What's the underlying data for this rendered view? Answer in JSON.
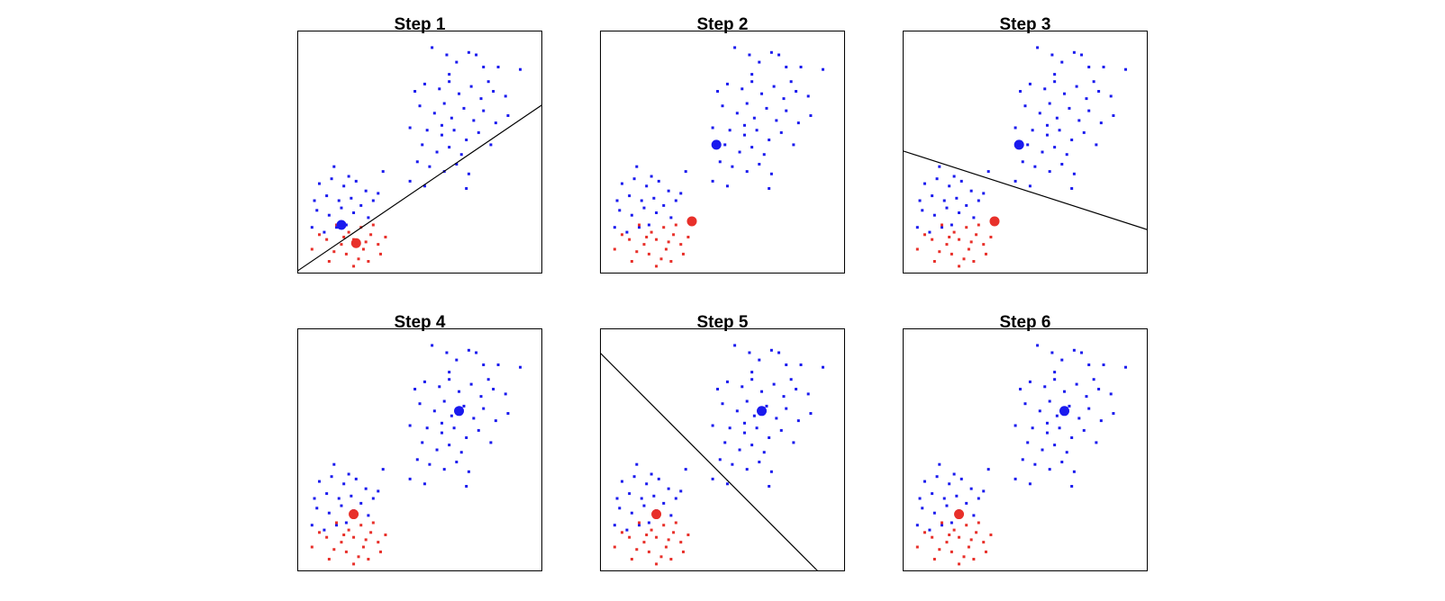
{
  "colors": {
    "cluster_a": "#1a1aee",
    "cluster_b": "#e8302a",
    "line": "#000000",
    "frame": "#000000"
  },
  "chart_data": [
    {
      "type": "scatter",
      "title": "Step 1",
      "xlim": [
        0,
        10
      ],
      "ylim": [
        0,
        10
      ],
      "grid": false,
      "centroids": {
        "cluster_a": [
          1.8,
          2.0
        ],
        "cluster_b": [
          2.4,
          1.25
        ]
      },
      "split_line": [
        [
          0,
          0.1
        ],
        [
          10,
          6.95
        ]
      ],
      "split_points": [
        [
          5.8,
          5.2
        ],
        [
          7.0,
          5.2
        ],
        [
          7.2,
          6.0
        ],
        [
          8.0,
          5.6
        ],
        [
          9.35,
          5.6
        ],
        [
          9.35,
          5.4
        ],
        [
          7.3,
          4.6
        ],
        [
          6.1,
          4.6
        ],
        [
          5.0,
          4.0
        ],
        [
          4.3,
          3.0
        ],
        [
          4.0,
          2.4
        ],
        [
          3.9,
          2.0
        ]
      ]
    },
    {
      "type": "scatter",
      "title": "Step 2",
      "xlim": [
        0,
        10
      ],
      "ylim": [
        0,
        10
      ],
      "grid": false,
      "centroids": {
        "cluster_a": [
          4.75,
          5.3
        ],
        "cluster_b": [
          3.75,
          2.15
        ]
      },
      "split_line": null,
      "split_points": [
        [
          5.8,
          5.2
        ],
        [
          7.0,
          5.2
        ],
        [
          7.2,
          6.0
        ],
        [
          8.0,
          5.6
        ],
        [
          9.35,
          5.6
        ],
        [
          9.35,
          5.4
        ],
        [
          7.3,
          4.6
        ],
        [
          6.1,
          4.6
        ],
        [
          5.0,
          4.0
        ],
        [
          4.3,
          3.0
        ],
        [
          4.0,
          2.4
        ],
        [
          3.9,
          2.0
        ]
      ]
    },
    {
      "type": "scatter",
      "title": "Step 3",
      "xlim": [
        0,
        10
      ],
      "ylim": [
        0,
        10
      ],
      "grid": false,
      "centroids": {
        "cluster_a": [
          4.75,
          5.3
        ],
        "cluster_b": [
          3.75,
          2.15
        ]
      },
      "split_line": [
        [
          0,
          5.05
        ],
        [
          10,
          1.8
        ]
      ],
      "split_points": [
        [
          3.5,
          3.7
        ],
        [
          3.6,
          4.2
        ]
      ]
    },
    {
      "type": "scatter",
      "title": "Step 4",
      "xlim": [
        0,
        10
      ],
      "ylim": [
        0,
        10
      ],
      "grid": false,
      "centroids": {
        "cluster_a": [
          6.6,
          6.6
        ],
        "cluster_b": [
          2.3,
          2.35
        ]
      },
      "split_line": null,
      "split_points": []
    },
    {
      "type": "scatter",
      "title": "Step 5",
      "xlim": [
        0,
        10
      ],
      "ylim": [
        0,
        10
      ],
      "grid": false,
      "centroids": {
        "cluster_a": [
          6.6,
          6.6
        ],
        "cluster_b": [
          2.3,
          2.35
        ]
      },
      "split_line": [
        [
          0,
          9.0
        ],
        [
          8.9,
          0
        ]
      ],
      "split_points": []
    },
    {
      "type": "scatter",
      "title": "Step 6",
      "xlim": [
        0,
        10
      ],
      "ylim": [
        0,
        10
      ],
      "grid": false,
      "centroids": {
        "cluster_a": [
          6.6,
          6.6
        ],
        "cluster_b": [
          2.3,
          2.35
        ]
      },
      "split_line": null,
      "split_points": []
    }
  ],
  "base_clusters": {
    "cluster_a": [
      [
        5.5,
        9.3
      ],
      [
        6.1,
        9.0
      ],
      [
        6.5,
        8.7
      ],
      [
        7.0,
        9.1
      ],
      [
        7.3,
        9.0
      ],
      [
        7.6,
        8.5
      ],
      [
        8.2,
        8.5
      ],
      [
        9.1,
        8.4
      ],
      [
        4.8,
        7.5
      ],
      [
        5.2,
        7.8
      ],
      [
        5.8,
        7.6
      ],
      [
        6.2,
        7.9
      ],
      [
        6.6,
        7.4
      ],
      [
        7.1,
        7.7
      ],
      [
        7.5,
        7.2
      ],
      [
        8.0,
        7.5
      ],
      [
        8.5,
        7.3
      ],
      [
        5.0,
        6.9
      ],
      [
        5.6,
        6.6
      ],
      [
        6.0,
        7.0
      ],
      [
        6.3,
        6.4
      ],
      [
        6.8,
        6.8
      ],
      [
        7.2,
        6.3
      ],
      [
        7.6,
        6.7
      ],
      [
        8.1,
        6.2
      ],
      [
        8.6,
        6.5
      ],
      [
        4.6,
        6.0
      ],
      [
        5.3,
        5.9
      ],
      [
        5.9,
        5.7
      ],
      [
        6.4,
        5.9
      ],
      [
        6.9,
        5.5
      ],
      [
        7.4,
        5.8
      ],
      [
        7.9,
        5.3
      ],
      [
        5.1,
        5.3
      ],
      [
        5.7,
        5.0
      ],
      [
        6.2,
        5.2
      ],
      [
        6.7,
        4.9
      ],
      [
        4.9,
        4.6
      ],
      [
        5.4,
        4.4
      ],
      [
        6.0,
        4.2
      ],
      [
        6.5,
        4.5
      ],
      [
        7.0,
        4.1
      ],
      [
        4.6,
        3.8
      ],
      [
        5.2,
        3.6
      ],
      [
        6.9,
        3.5
      ],
      [
        6.2,
        8.2
      ],
      [
        7.8,
        7.9
      ],
      [
        5.9,
        6.1
      ],
      [
        0.9,
        3.7
      ],
      [
        1.4,
        3.9
      ],
      [
        1.9,
        3.6
      ],
      [
        2.4,
        3.8
      ],
      [
        2.8,
        3.4
      ],
      [
        1.2,
        3.2
      ],
      [
        1.7,
        3.0
      ],
      [
        2.2,
        3.1
      ],
      [
        2.6,
        2.8
      ],
      [
        3.1,
        3.0
      ],
      [
        0.8,
        2.6
      ],
      [
        1.3,
        2.4
      ],
      [
        1.8,
        2.7
      ],
      [
        2.3,
        2.5
      ],
      [
        2.9,
        2.3
      ],
      [
        3.3,
        3.3
      ],
      [
        0.6,
        1.9
      ],
      [
        1.1,
        1.7
      ],
      [
        1.6,
        1.9
      ],
      [
        2.0,
        2.0
      ],
      [
        3.5,
        4.2
      ],
      [
        0.7,
        3.0
      ],
      [
        1.5,
        4.4
      ],
      [
        2.1,
        4.0
      ]
    ],
    "cluster_b": [
      [
        1.8,
        1.2
      ],
      [
        2.3,
        1.4
      ],
      [
        2.7,
        1.0
      ],
      [
        3.0,
        1.6
      ],
      [
        3.3,
        1.2
      ],
      [
        2.0,
        0.8
      ],
      [
        2.5,
        0.6
      ],
      [
        1.5,
        0.9
      ],
      [
        2.9,
        0.5
      ],
      [
        3.4,
        0.8
      ],
      [
        1.2,
        1.4
      ],
      [
        2.1,
        1.7
      ],
      [
        2.6,
        1.9
      ],
      [
        3.1,
        2.0
      ],
      [
        1.6,
        2.0
      ],
      [
        0.9,
        1.6
      ],
      [
        0.6,
        1.0
      ],
      [
        3.6,
        1.5
      ],
      [
        1.3,
        0.5
      ],
      [
        2.3,
        0.3
      ],
      [
        2.8,
        1.3
      ],
      [
        1.9,
        1.5
      ]
    ]
  }
}
